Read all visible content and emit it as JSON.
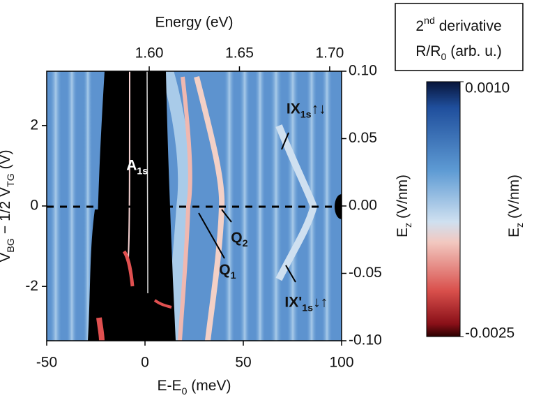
{
  "chart_data": {
    "type": "heatmap",
    "xlabel": [
      "E-E",
      "0",
      " (meV)"
    ],
    "x2label": "Energy (eV)",
    "ylabel": [
      "V",
      "BG",
      " − 1/2 V",
      "TG",
      " (V)"
    ],
    "y2label": [
      "E",
      "z",
      " (V/nm)"
    ],
    "xlim": [
      -50,
      100
    ],
    "xticks": [
      -50,
      0,
      50,
      100
    ],
    "x2lim": [
      1.5432,
      1.7066
    ],
    "x2ticks": [
      {
        "value": 1.6,
        "label": "1.60"
      },
      {
        "value": 1.65,
        "label": "1.65"
      },
      {
        "value": 1.7,
        "label": "1.70"
      }
    ],
    "ylim": [
      -3.35,
      3.35
    ],
    "yticks": [
      -2,
      0,
      2
    ],
    "y2lim": [
      -0.1,
      0.1
    ],
    "y2ticks": [
      {
        "value": 0.1,
        "label": "0.10"
      },
      {
        "value": 0.05,
        "label": "0.05"
      },
      {
        "value": 0,
        "label": "0.00"
      },
      {
        "value": -0.05,
        "label": "-0.05"
      },
      {
        "value": -0.1,
        "label": "-0.10"
      }
    ],
    "annotations": [
      {
        "text": [
          "A",
          "1s"
        ],
        "x": -4,
        "y": 1.0
      },
      {
        "text": [
          "Q",
          "2"
        ],
        "x": 48,
        "y": -0.8
      },
      {
        "text": [
          "Q",
          "1"
        ],
        "x": 42,
        "y": -1.6
      },
      {
        "text": [
          "IX",
          "1s",
          "↑↓"
        ],
        "x": 82,
        "y": 2.4
      },
      {
        "text": [
          "IX'",
          "1s",
          "↓↑"
        ],
        "x": 82,
        "y": -2.4
      }
    ],
    "colorbar": {
      "title": [
        [
          "2",
          "nd",
          " derivative"
        ],
        [
          "R/R",
          "0",
          " (arb. u.)"
        ]
      ],
      "label": [
        "E",
        "z",
        " (V/nm)"
      ],
      "clim": [
        -0.0025,
        0.001
      ],
      "ticks": [
        {
          "value": 0.001,
          "label": "0.0010"
        },
        {
          "value": -0.0025,
          "label": "-0.0025"
        }
      ]
    }
  }
}
